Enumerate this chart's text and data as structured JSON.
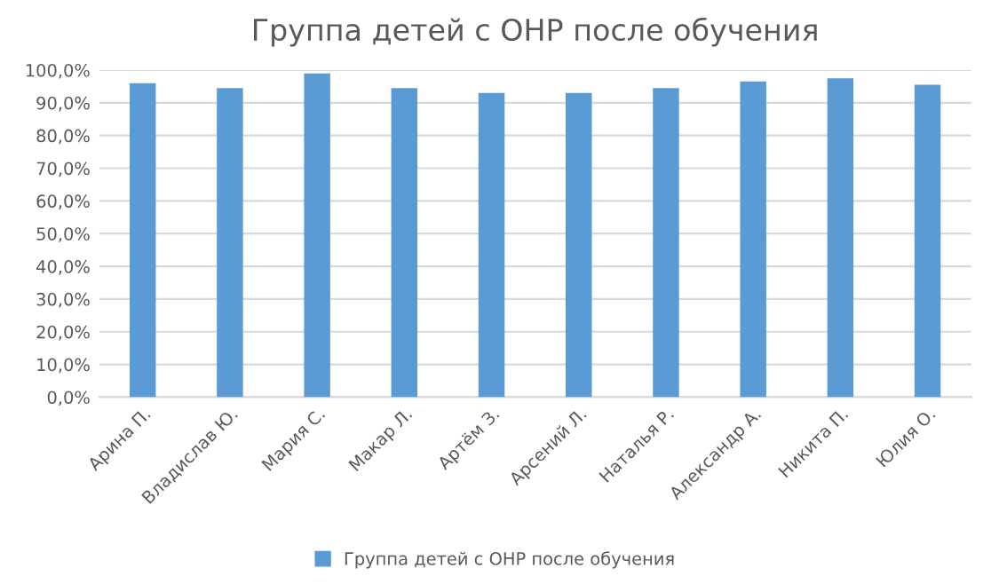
{
  "chart_data": {
    "type": "bar",
    "title": "Группа детей с ОНР после обучения",
    "categories": [
      "Арина П.",
      "Владислав Ю.",
      "Мария С.",
      "Макар Л.",
      "Артём З.",
      "Арсений Л.",
      "Наталья Р.",
      "Александр А.",
      "Никита П.",
      "Юлия О."
    ],
    "series": [
      {
        "name": "Группа детей с ОНР после обучения",
        "color": "#5b9bd5",
        "values": [
          96,
          94.5,
          99,
          94.5,
          93,
          93,
          94.5,
          96.5,
          97.5,
          95.5
        ]
      }
    ],
    "ylim": [
      0,
      100
    ],
    "yticks": [
      {
        "value": 0,
        "label": "0,0%"
      },
      {
        "value": 10,
        "label": "10,0%"
      },
      {
        "value": 20,
        "label": "20,0%"
      },
      {
        "value": 30,
        "label": "30,0%"
      },
      {
        "value": 40,
        "label": "40,0%"
      },
      {
        "value": 50,
        "label": "50,0%"
      },
      {
        "value": 60,
        "label": "60,0%"
      },
      {
        "value": 70,
        "label": "70,0%"
      },
      {
        "value": 80,
        "label": "80,0%"
      },
      {
        "value": 90,
        "label": "90,0%"
      },
      {
        "value": 100,
        "label": "100,0%"
      }
    ],
    "grid": "y",
    "legend": "bottom"
  }
}
